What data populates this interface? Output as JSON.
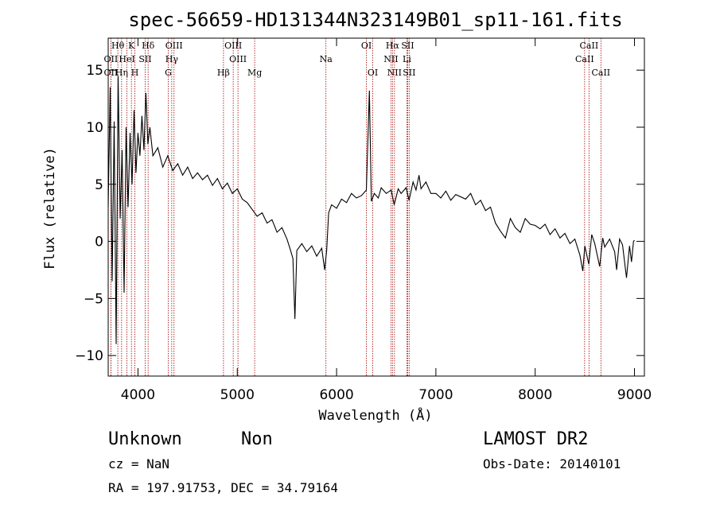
{
  "chart_data": {
    "type": "line",
    "title": "spec-56659-HD131344N323149B01_sp11-161.fits",
    "xlabel": "Wavelength (Å)",
    "ylabel": "Flux (relative)",
    "xlim": [
      3700,
      9100
    ],
    "ylim": [
      -11.8,
      17.8
    ],
    "xticks": [
      4000,
      5000,
      6000,
      7000,
      8000,
      9000
    ],
    "yticks": [
      -10,
      -5,
      0,
      5,
      10,
      15
    ],
    "xtick_labels": [
      "4000",
      "5000",
      "6000",
      "7000",
      "8000",
      "9000"
    ],
    "ytick_labels": [
      "−10",
      "−5",
      "0",
      "5",
      "10",
      "15"
    ],
    "grid": false,
    "series": [
      {
        "points": [
          [
            3700,
            3
          ],
          [
            3720,
            13.5
          ],
          [
            3740,
            -3.5
          ],
          [
            3760,
            10.5
          ],
          [
            3780,
            -9
          ],
          [
            3800,
            14.5
          ],
          [
            3820,
            2
          ],
          [
            3840,
            8
          ],
          [
            3860,
            -4.5
          ],
          [
            3880,
            10
          ],
          [
            3900,
            3
          ],
          [
            3920,
            9.5
          ],
          [
            3940,
            5
          ],
          [
            3960,
            11.5
          ],
          [
            3980,
            6
          ],
          [
            4000,
            9.5
          ],
          [
            4020,
            7.5
          ],
          [
            4040,
            11
          ],
          [
            4060,
            8
          ],
          [
            4080,
            13
          ],
          [
            4100,
            8.5
          ],
          [
            4120,
            10
          ],
          [
            4150,
            7.5
          ],
          [
            4200,
            8.2
          ],
          [
            4250,
            6.5
          ],
          [
            4300,
            7.5
          ],
          [
            4350,
            6.2
          ],
          [
            4400,
            6.8
          ],
          [
            4450,
            5.8
          ],
          [
            4500,
            6.5
          ],
          [
            4550,
            5.5
          ],
          [
            4600,
            6.0
          ],
          [
            4650,
            5.4
          ],
          [
            4700,
            5.8
          ],
          [
            4750,
            4.9
          ],
          [
            4800,
            5.5
          ],
          [
            4850,
            4.6
          ],
          [
            4900,
            5.1
          ],
          [
            4950,
            4.2
          ],
          [
            5000,
            4.6
          ],
          [
            5050,
            3.7
          ],
          [
            5100,
            3.4
          ],
          [
            5150,
            2.8
          ],
          [
            5200,
            2.2
          ],
          [
            5250,
            2.5
          ],
          [
            5300,
            1.6
          ],
          [
            5350,
            1.9
          ],
          [
            5400,
            0.8
          ],
          [
            5450,
            1.2
          ],
          [
            5500,
            0.2
          ],
          [
            5530,
            -0.6
          ],
          [
            5560,
            -1.5
          ],
          [
            5580,
            -6.8
          ],
          [
            5600,
            -0.8
          ],
          [
            5650,
            -0.2
          ],
          [
            5700,
            -0.9
          ],
          [
            5750,
            -0.4
          ],
          [
            5800,
            -1.3
          ],
          [
            5850,
            -0.6
          ],
          [
            5880,
            -2.5
          ],
          [
            5900,
            -0.8
          ],
          [
            5920,
            2.5
          ],
          [
            5950,
            3.2
          ],
          [
            6000,
            2.9
          ],
          [
            6050,
            3.7
          ],
          [
            6100,
            3.4
          ],
          [
            6150,
            4.2
          ],
          [
            6200,
            3.8
          ],
          [
            6250,
            4.0
          ],
          [
            6300,
            4.5
          ],
          [
            6330,
            13.2
          ],
          [
            6350,
            3.5
          ],
          [
            6380,
            4.2
          ],
          [
            6420,
            3.8
          ],
          [
            6450,
            4.7
          ],
          [
            6500,
            4.2
          ],
          [
            6550,
            4.5
          ],
          [
            6580,
            3.2
          ],
          [
            6620,
            4.6
          ],
          [
            6650,
            4.2
          ],
          [
            6700,
            4.7
          ],
          [
            6730,
            3.6
          ],
          [
            6770,
            5.2
          ],
          [
            6800,
            4.5
          ],
          [
            6830,
            5.8
          ],
          [
            6850,
            4.6
          ],
          [
            6900,
            5.2
          ],
          [
            6950,
            4.2
          ],
          [
            7000,
            4.2
          ],
          [
            7050,
            3.8
          ],
          [
            7100,
            4.4
          ],
          [
            7150,
            3.6
          ],
          [
            7200,
            4.1
          ],
          [
            7300,
            3.7
          ],
          [
            7350,
            4.2
          ],
          [
            7400,
            3.2
          ],
          [
            7450,
            3.6
          ],
          [
            7500,
            2.7
          ],
          [
            7550,
            3.0
          ],
          [
            7600,
            1.6
          ],
          [
            7650,
            0.9
          ],
          [
            7700,
            0.3
          ],
          [
            7750,
            2.0
          ],
          [
            7800,
            1.2
          ],
          [
            7850,
            0.8
          ],
          [
            7900,
            2.0
          ],
          [
            7950,
            1.5
          ],
          [
            8000,
            1.4
          ],
          [
            8050,
            1.1
          ],
          [
            8100,
            1.5
          ],
          [
            8150,
            0.6
          ],
          [
            8200,
            1.1
          ],
          [
            8250,
            0.3
          ],
          [
            8300,
            0.7
          ],
          [
            8350,
            -0.2
          ],
          [
            8400,
            0.2
          ],
          [
            8450,
            -1.2
          ],
          [
            8480,
            -2.6
          ],
          [
            8500,
            -0.4
          ],
          [
            8540,
            -2.0
          ],
          [
            8570,
            0.6
          ],
          [
            8600,
            -0.2
          ],
          [
            8650,
            -2.2
          ],
          [
            8680,
            0.3
          ],
          [
            8700,
            -0.5
          ],
          [
            8750,
            0.2
          ],
          [
            8800,
            -0.9
          ],
          [
            8820,
            -2.5
          ],
          [
            8850,
            0.2
          ],
          [
            8880,
            -0.3
          ],
          [
            8920,
            -3.2
          ],
          [
            8950,
            -0.4
          ],
          [
            8970,
            -1.8
          ],
          [
            8990,
            0.0
          ],
          [
            9000,
            0.1
          ]
        ]
      }
    ],
    "line_markers_top": [
      {
        "label": "Hθ",
        "x": 3797
      },
      {
        "label": "K",
        "x": 3934
      },
      {
        "label": "Hδ",
        "x": 4102
      },
      {
        "label": "OIII",
        "x": 4363
      },
      {
        "label": "OIII",
        "x": 4959
      },
      {
        "label": "OI",
        "x": 6300
      },
      {
        "label": "Hα",
        "x": 6563
      },
      {
        "label": "SII",
        "x": 6716
      },
      {
        "label": "CaII",
        "x": 8542
      }
    ],
    "line_markers_mid": [
      {
        "label": "OII",
        "x": 3727
      },
      {
        "label": "HeI",
        "x": 3889
      },
      {
        "label": "SII",
        "x": 4072
      },
      {
        "label": "Hγ",
        "x": 4340
      },
      {
        "label": "OIII",
        "x": 5007
      },
      {
        "label": "Na",
        "x": 5893
      },
      {
        "label": "NII",
        "x": 6548
      },
      {
        "label": "Li",
        "x": 6708
      },
      {
        "label": "CaII",
        "x": 8498
      }
    ],
    "line_markers_low": [
      {
        "label": "OII",
        "x": 3727
      },
      {
        "label": "Hη",
        "x": 3835
      },
      {
        "label": "H",
        "x": 3969
      },
      {
        "label": "G",
        "x": 4305
      },
      {
        "label": "Hβ",
        "x": 4861
      },
      {
        "label": "Mg",
        "x": 5175
      },
      {
        "label": "OI",
        "x": 6364
      },
      {
        "label": "NII",
        "x": 6583
      },
      {
        "label": "SII",
        "x": 6731
      },
      {
        "label": "CaII",
        "x": 8662
      }
    ],
    "line_marker_color": "#a00000",
    "line_color": "#000000"
  },
  "info": {
    "object_class": "Unknown",
    "subclass": "Non",
    "survey": "LAMOST DR2",
    "cz": "cz = NaN",
    "obs_date": "Obs-Date: 20140101",
    "radec": "RA = 197.91753, DEC =  34.79164"
  }
}
